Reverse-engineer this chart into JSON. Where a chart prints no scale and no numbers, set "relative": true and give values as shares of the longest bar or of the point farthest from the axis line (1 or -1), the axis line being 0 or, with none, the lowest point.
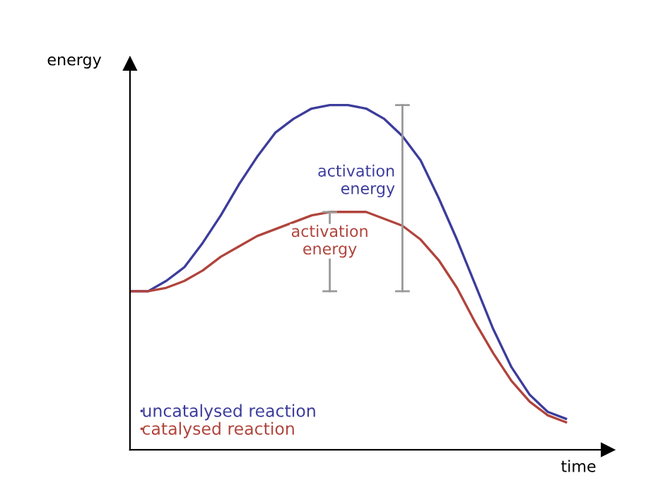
{
  "chart_data": {
    "type": "line",
    "relative": true,
    "xlabel": "time",
    "ylabel": "energy",
    "categories": [
      null,
      null,
      null,
      null,
      null,
      null,
      null,
      null,
      null,
      null,
      null,
      null,
      null,
      null,
      null,
      null,
      null,
      null,
      null,
      null,
      null,
      null,
      null,
      null,
      null
    ],
    "series": [
      {
        "name": "uncatalysed reaction",
        "color": "#3c3c9c",
        "values": [
          0.46,
          0.46,
          0.49,
          0.53,
          0.6,
          0.68,
          0.77,
          0.85,
          0.92,
          0.96,
          0.99,
          1,
          1,
          0.99,
          0.96,
          0.91,
          0.84,
          0.73,
          0.61,
          0.48,
          0.35,
          0.24,
          0.16,
          0.11,
          0.09
        ]
      },
      {
        "name": "catalysed reaction",
        "color": "#b0443c",
        "values": [
          0.46,
          0.46,
          0.47,
          0.49,
          0.52,
          0.56,
          0.59,
          0.62,
          0.64,
          0.66,
          0.68,
          0.69,
          0.69,
          0.69,
          0.67,
          0.65,
          0.61,
          0.55,
          0.47,
          0.37,
          0.28,
          0.2,
          0.14,
          0.1,
          0.08
        ]
      }
    ],
    "annotations": [
      "activation\nenergy",
      "activation\nenergy"
    ],
    "legend": "bottom left",
    "marker": "none",
    "line_style": "solid"
  }
}
